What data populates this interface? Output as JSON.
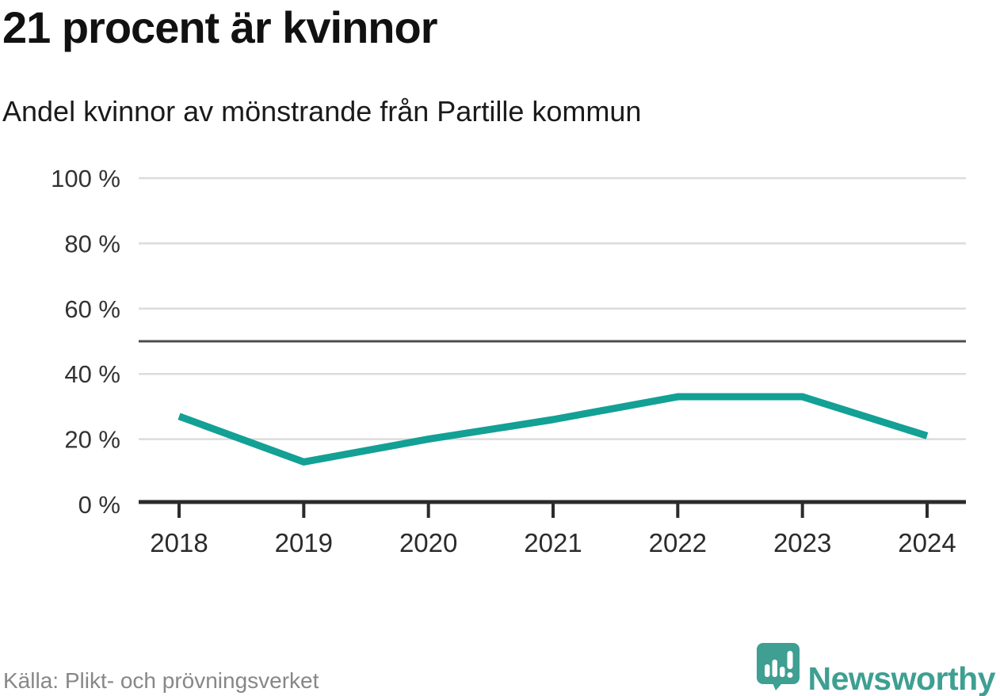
{
  "header": {
    "title": "21 procent är kvinnor",
    "subtitle": "Andel kvinnor av mönstrande från Partille kommun"
  },
  "footer": {
    "source": "Källa: Plikt- och prövningsverket",
    "brand": "Newsworthy"
  },
  "colors": {
    "line": "#13a095",
    "brand": "#3e9f92",
    "grid": "#dcdcdc",
    "reference": "#4d4d4d",
    "axis": "#2b2b2b",
    "text": "#333333",
    "muted": "#878787"
  },
  "chart_data": {
    "type": "line",
    "title": "21 procent är kvinnor",
    "subtitle": "Andel kvinnor av mönstrande från Partille kommun",
    "categories": [
      "2018",
      "2019",
      "2020",
      "2021",
      "2022",
      "2023",
      "2024"
    ],
    "series": [
      {
        "name": "Andel kvinnor av mönstrande",
        "values": [
          27,
          13,
          20,
          26,
          33,
          33,
          21
        ]
      }
    ],
    "unit": "%",
    "ylim": [
      0,
      100
    ],
    "yticks": [
      0,
      20,
      40,
      60,
      80,
      100
    ],
    "ytick_format": "{v} %",
    "reference_line": 50,
    "grid": true,
    "legend": false,
    "source": "Källa: Plikt- och prövningsverket"
  }
}
